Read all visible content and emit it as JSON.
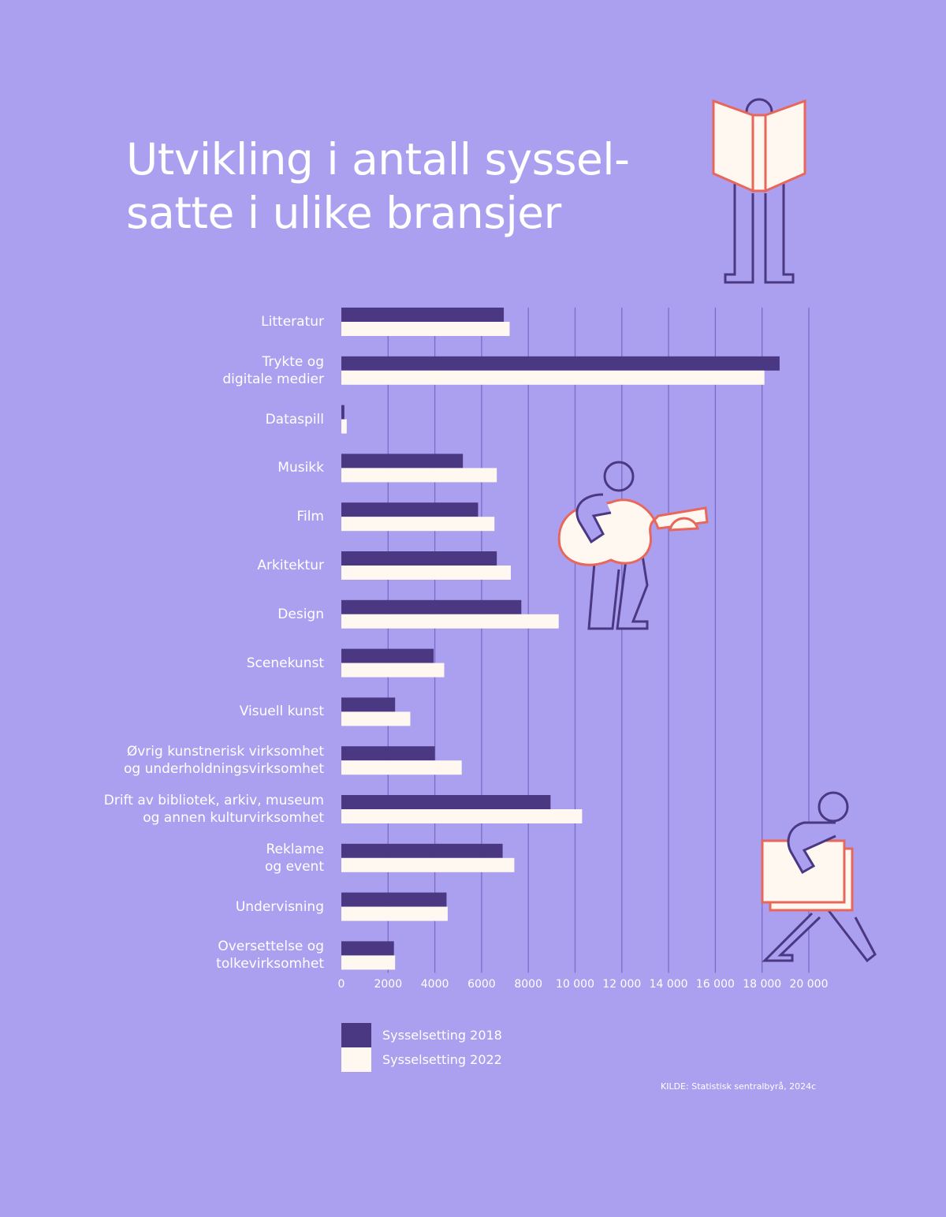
{
  "chart_data": {
    "type": "bar",
    "orientation": "horizontal",
    "title": "Utvikling i antall syssel-\nsatte i ulike bransjer",
    "categories": [
      "Litteratur",
      "Trykte og\ndigitale medier",
      "Dataspill",
      "Musikk",
      "Film",
      "Arkitektur",
      "Design",
      "Scenekunst",
      "Visuell kunst",
      "Øvrig kunstnerisk virksomhet\nog underholdningsvirksomhet",
      "Drift av bibliotek, arkiv, museum\nog annen kulturvirksomhet",
      "Reklame\nog event",
      "Undervisning",
      "Oversettelse og\ntolkevirksomhet"
    ],
    "series": [
      {
        "name": "Sysselsetting 2018",
        "color": "#4b3882",
        "values": [
          6950,
          18750,
          130,
          5200,
          5850,
          6650,
          7700,
          3950,
          2300,
          4000,
          8950,
          6900,
          4500,
          2250
        ]
      },
      {
        "name": "Sysselsetting 2022",
        "color": "#fff8f0",
        "values": [
          7200,
          18100,
          230,
          6650,
          6550,
          7250,
          9300,
          4400,
          2950,
          5150,
          10300,
          7400,
          4550,
          2300
        ]
      }
    ],
    "xlim": [
      0,
      20000
    ],
    "xticks": [
      0,
      2000,
      4000,
      6000,
      8000,
      10000,
      12000,
      14000,
      16000,
      18000,
      20000
    ],
    "xtick_labels": [
      "0",
      "2000",
      "4000",
      "6000",
      "8000",
      "10 000",
      "12 000",
      "14 000",
      "16 000",
      "18 000",
      "20 000"
    ],
    "grid": "vertical",
    "legend": "bottom-left",
    "source": "KILDE: Statistisk sentralbyrå, 2024c"
  },
  "colors": {
    "background": "#aba0ef",
    "grid": "#7a6cc8",
    "accent": "#e8665a"
  }
}
